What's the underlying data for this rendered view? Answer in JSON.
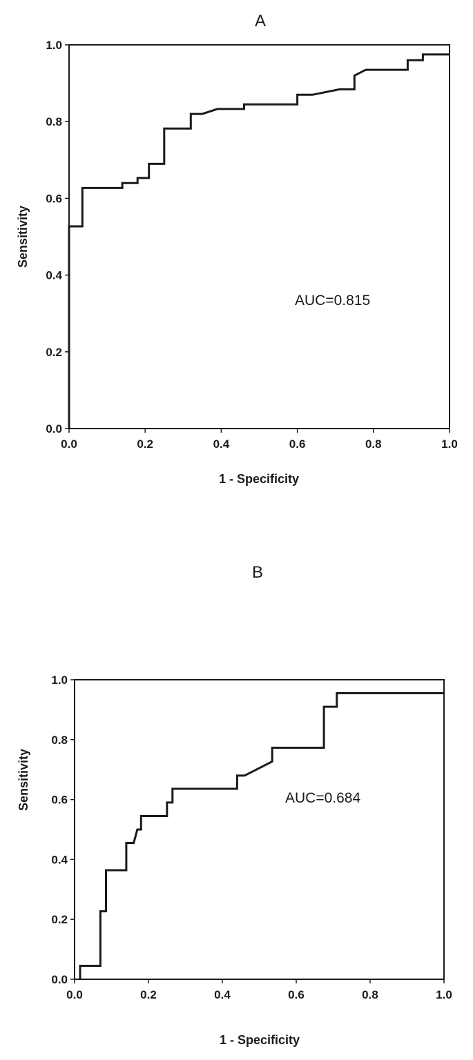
{
  "chart_data": [
    {
      "type": "line",
      "panel_label": "A",
      "xlabel": "1 - Specificity",
      "ylabel": "Sensitivity",
      "xlim": [
        0,
        1
      ],
      "ylim": [
        0,
        1
      ],
      "xticks": [
        "0.0",
        "0.2",
        "0.4",
        "0.6",
        "0.8",
        "1.0"
      ],
      "yticks": [
        "0.0",
        "0.2",
        "0.4",
        "0.6",
        "0.8",
        "1.0"
      ],
      "grid": false,
      "annotation": "AUC=0.815",
      "series": [
        {
          "x": [
            0.0,
            0.0,
            0.035,
            0.035,
            0.14,
            0.14,
            0.18,
            0.18,
            0.21,
            0.21,
            0.25,
            0.25,
            0.32,
            0.32,
            0.35,
            0.39,
            0.46,
            0.46,
            0.6,
            0.6,
            0.64,
            0.71,
            0.75,
            0.75,
            0.78,
            0.89,
            0.89,
            0.93,
            0.93,
            1.0
          ],
          "y": [
            0.0,
            0.527,
            0.527,
            0.627,
            0.627,
            0.64,
            0.64,
            0.653,
            0.653,
            0.69,
            0.69,
            0.782,
            0.782,
            0.82,
            0.82,
            0.833,
            0.833,
            0.845,
            0.845,
            0.87,
            0.87,
            0.884,
            0.884,
            0.92,
            0.935,
            0.935,
            0.96,
            0.96,
            0.975,
            0.975
          ]
        }
      ]
    },
    {
      "type": "line",
      "panel_label": "B",
      "xlabel": "1 - Specificity",
      "ylabel": "Sensitivity",
      "xlim": [
        0,
        1
      ],
      "ylim": [
        0,
        1
      ],
      "xticks": [
        "0.0",
        "0.2",
        "0.4",
        "0.6",
        "0.8",
        "1.0"
      ],
      "yticks": [
        "0.0",
        "0.2",
        "0.4",
        "0.6",
        "0.8",
        "1.0"
      ],
      "grid": false,
      "annotation": "AUC=0.684",
      "series": [
        {
          "x": [
            0.015,
            0.015,
            0.07,
            0.07,
            0.085,
            0.085,
            0.14,
            0.14,
            0.16,
            0.17,
            0.18,
            0.18,
            0.25,
            0.25,
            0.265,
            0.265,
            0.44,
            0.44,
            0.46,
            0.535,
            0.535,
            0.675,
            0.675,
            0.71,
            0.71,
            1.0
          ],
          "y": [
            0.0,
            0.045,
            0.045,
            0.227,
            0.227,
            0.364,
            0.364,
            0.455,
            0.455,
            0.5,
            0.5,
            0.545,
            0.545,
            0.59,
            0.59,
            0.636,
            0.636,
            0.68,
            0.68,
            0.727,
            0.773,
            0.773,
            0.91,
            0.91,
            0.955,
            0.955
          ]
        }
      ]
    }
  ]
}
